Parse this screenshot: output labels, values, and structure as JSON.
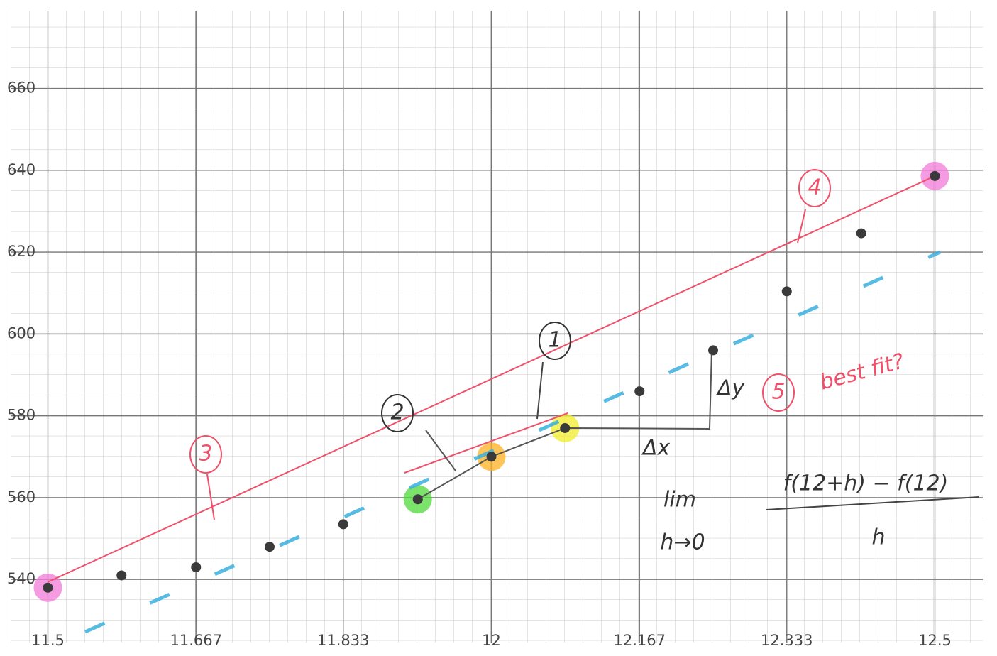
{
  "chart_data": {
    "type": "scatter",
    "x": [
      11.5,
      11.583,
      11.667,
      11.75,
      11.833,
      11.917,
      12,
      12.083,
      12.167,
      12.25,
      12.333,
      12.417,
      12.5
    ],
    "values": [
      538,
      541,
      543,
      548,
      553.5,
      559.6,
      570,
      577,
      586,
      596,
      610.4,
      624.6,
      638.6
    ],
    "color": "#3a3a3a",
    "xlim": [
      11.458,
      12.554
    ],
    "ylim": [
      524.6,
      679
    ],
    "xticks": [
      11.5,
      11.667,
      11.833,
      12,
      12.167,
      12.333,
      12.5
    ],
    "yticks": [
      540,
      560,
      580,
      600,
      620,
      640,
      660
    ],
    "grid": true,
    "annotations": [
      "1",
      "2",
      "3",
      "4",
      "5",
      "best fit?",
      "Δy",
      "Δx",
      "lim",
      "h→0",
      "f(12+h) − f(12)",
      "h"
    ]
  }
}
